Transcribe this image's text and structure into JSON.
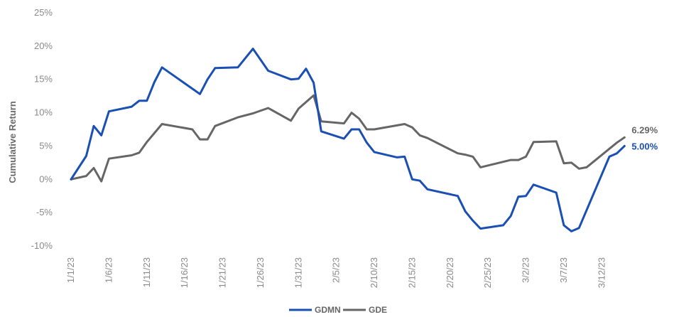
{
  "chart_data": {
    "type": "line",
    "title": "",
    "xlabel": "",
    "ylabel": "Cumulative Return",
    "ylim": [
      -10,
      25
    ],
    "y_ticks": [
      25,
      20,
      15,
      10,
      5,
      0,
      -5,
      -10
    ],
    "y_tick_labels": [
      "25%",
      "20%",
      "15%",
      "10%",
      "5%",
      "0%",
      "-5%",
      "-10%"
    ],
    "x_range": [
      "2023-01-01",
      "2023-03-16"
    ],
    "x_ticks": [
      "2023-01-01",
      "2023-01-06",
      "2023-01-11",
      "2023-01-16",
      "2023-01-21",
      "2023-01-26",
      "2023-01-31",
      "2023-02-05",
      "2023-02-10",
      "2023-02-15",
      "2023-02-20",
      "2023-02-25",
      "2023-03-02",
      "2023-03-07",
      "2023-03-12"
    ],
    "x_tick_labels": [
      "1/1/23",
      "1/6/23",
      "1/11/23",
      "1/16/23",
      "1/21/23",
      "1/26/23",
      "1/31/23",
      "2/5/23",
      "2/10/23",
      "2/15/23",
      "2/20/23",
      "2/25/23",
      "3/2/23",
      "3/7/23",
      "3/12/23"
    ],
    "grid": false,
    "legend_position": "bottom-center",
    "series": [
      {
        "name": "GDMN",
        "color": "#1a4fb4",
        "end_label": "5.00%",
        "points": [
          [
            "2023-01-01",
            0.0
          ],
          [
            "2023-01-03",
            3.5
          ],
          [
            "2023-01-04",
            8.0
          ],
          [
            "2023-01-05",
            6.6
          ],
          [
            "2023-01-06",
            10.2
          ],
          [
            "2023-01-09",
            10.9
          ],
          [
            "2023-01-10",
            11.8
          ],
          [
            "2023-01-11",
            11.8
          ],
          [
            "2023-01-12",
            14.6
          ],
          [
            "2023-01-13",
            16.8
          ],
          [
            "2023-01-18",
            12.8
          ],
          [
            "2023-01-19",
            15.0
          ],
          [
            "2023-01-20",
            16.7
          ],
          [
            "2023-01-23",
            16.8
          ],
          [
            "2023-01-25",
            19.6
          ],
          [
            "2023-01-27",
            16.3
          ],
          [
            "2023-01-30",
            15.0
          ],
          [
            "2023-01-31",
            15.1
          ],
          [
            "2023-02-01",
            16.6
          ],
          [
            "2023-02-02",
            14.5
          ],
          [
            "2023-02-03",
            7.2
          ],
          [
            "2023-02-06",
            6.1
          ],
          [
            "2023-02-07",
            7.5
          ],
          [
            "2023-02-08",
            7.5
          ],
          [
            "2023-02-09",
            5.5
          ],
          [
            "2023-02-10",
            4.1
          ],
          [
            "2023-02-13",
            3.3
          ],
          [
            "2023-02-14",
            3.4
          ],
          [
            "2023-02-15",
            0.0
          ],
          [
            "2023-02-16",
            -0.2
          ],
          [
            "2023-02-17",
            -1.5
          ],
          [
            "2023-02-21",
            -2.5
          ],
          [
            "2023-02-22",
            -4.8
          ],
          [
            "2023-02-23",
            -6.2
          ],
          [
            "2023-02-24",
            -7.4
          ],
          [
            "2023-02-27",
            -6.9
          ],
          [
            "2023-02-28",
            -5.5
          ],
          [
            "2023-03-01",
            -2.6
          ],
          [
            "2023-03-02",
            -2.5
          ],
          [
            "2023-03-03",
            -0.8
          ],
          [
            "2023-03-06",
            -2.0
          ],
          [
            "2023-03-07",
            -6.9
          ],
          [
            "2023-03-08",
            -7.8
          ],
          [
            "2023-03-09",
            -7.3
          ],
          [
            "2023-03-13",
            3.4
          ],
          [
            "2023-03-14",
            3.9
          ],
          [
            "2023-03-15",
            5.0
          ]
        ]
      },
      {
        "name": "GDE",
        "color": "#666666",
        "end_label": "6.29%",
        "points": [
          [
            "2023-01-01",
            0.0
          ],
          [
            "2023-01-03",
            0.5
          ],
          [
            "2023-01-04",
            1.7
          ],
          [
            "2023-01-05",
            -0.3
          ],
          [
            "2023-01-06",
            3.1
          ],
          [
            "2023-01-09",
            3.6
          ],
          [
            "2023-01-10",
            4.0
          ],
          [
            "2023-01-11",
            5.6
          ],
          [
            "2023-01-13",
            8.3
          ],
          [
            "2023-01-17",
            7.5
          ],
          [
            "2023-01-18",
            6.0
          ],
          [
            "2023-01-19",
            6.0
          ],
          [
            "2023-01-20",
            8.0
          ],
          [
            "2023-01-23",
            9.3
          ],
          [
            "2023-01-25",
            9.9
          ],
          [
            "2023-01-27",
            10.7
          ],
          [
            "2023-01-30",
            8.8
          ],
          [
            "2023-01-31",
            10.6
          ],
          [
            "2023-02-02",
            12.6
          ],
          [
            "2023-02-03",
            8.7
          ],
          [
            "2023-02-06",
            8.4
          ],
          [
            "2023-02-07",
            10.0
          ],
          [
            "2023-02-08",
            9.1
          ],
          [
            "2023-02-09",
            7.5
          ],
          [
            "2023-02-10",
            7.5
          ],
          [
            "2023-02-14",
            8.3
          ],
          [
            "2023-02-15",
            7.8
          ],
          [
            "2023-02-16",
            6.6
          ],
          [
            "2023-02-17",
            6.2
          ],
          [
            "2023-02-21",
            3.9
          ],
          [
            "2023-02-22",
            3.7
          ],
          [
            "2023-02-23",
            3.4
          ],
          [
            "2023-02-24",
            1.8
          ],
          [
            "2023-02-28",
            2.9
          ],
          [
            "2023-03-01",
            2.9
          ],
          [
            "2023-03-02",
            3.4
          ],
          [
            "2023-03-03",
            5.6
          ],
          [
            "2023-03-06",
            5.7
          ],
          [
            "2023-03-07",
            2.4
          ],
          [
            "2023-03-08",
            2.5
          ],
          [
            "2023-03-09",
            1.6
          ],
          [
            "2023-03-10",
            1.8
          ],
          [
            "2023-03-14",
            5.5
          ],
          [
            "2023-03-15",
            6.29
          ]
        ]
      }
    ]
  }
}
